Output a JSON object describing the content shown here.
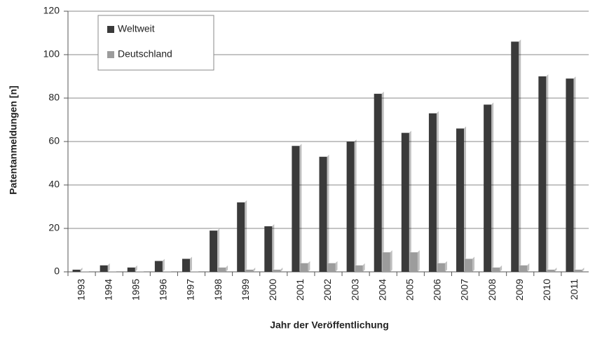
{
  "chart_data": {
    "type": "bar",
    "ylabel": "Patentanmeldungen [n]",
    "xlabel": "Jahr der Veröffentlichung",
    "categories": [
      "1993",
      "1994",
      "1995",
      "1996",
      "1997",
      "1998",
      "1999",
      "2000",
      "2001",
      "2002",
      "2003",
      "2004",
      "2005",
      "2006",
      "2007",
      "2008",
      "2009",
      "2010",
      "2011"
    ],
    "series": [
      {
        "name": "Weltweit",
        "color": "#3a3a3a",
        "values": [
          1,
          3,
          2,
          5,
          6,
          19,
          32,
          21,
          58,
          53,
          60,
          82,
          64,
          73,
          66,
          77,
          106,
          90,
          89
        ]
      },
      {
        "name": "Deutschland",
        "color": "#9c9c9c",
        "values": [
          0,
          0,
          0,
          0,
          0,
          2,
          1,
          1,
          4,
          4,
          3,
          9,
          9,
          4,
          6,
          2,
          3,
          1,
          1
        ]
      }
    ],
    "ylim": [
      0,
      120
    ],
    "yticks": [
      0,
      20,
      40,
      60,
      80,
      100,
      120
    ],
    "grid": true,
    "legend": "upper left"
  }
}
